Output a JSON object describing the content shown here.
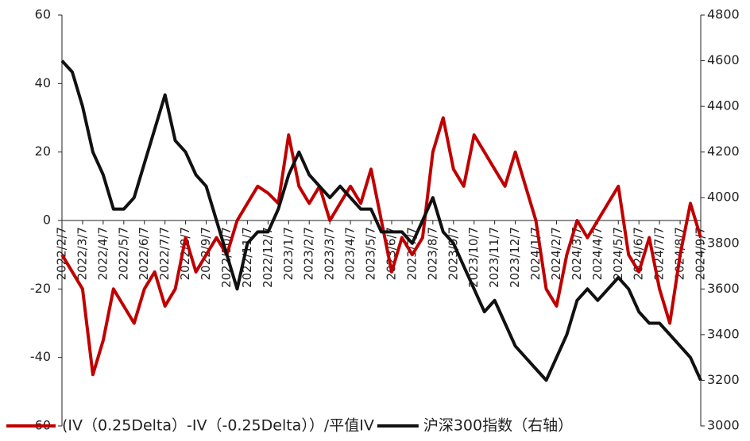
{
  "chart_data": {
    "type": "line",
    "categories": [
      "2022/2/7",
      null,
      "2022/3/7",
      null,
      "2022/4/7",
      null,
      "2022/5/7",
      null,
      "2022/6/7",
      null,
      "2022/7/7",
      null,
      "2022/8/7",
      null,
      "2022/9/7",
      null,
      "2022/10/7",
      null,
      "2022/11/7",
      null,
      "2022/12/7",
      null,
      "2023/1/7",
      null,
      "2023/2/7",
      null,
      "2023/3/7",
      null,
      "2023/4/7",
      null,
      "2023/5/7",
      null,
      "2023/6/7",
      null,
      "2023/7/7",
      null,
      "2023/8/7",
      null,
      "2023/9/7",
      null,
      "2023/10/7",
      null,
      "2023/11/7",
      null,
      "2023/12/7",
      null,
      "2024/1/7",
      null,
      "2024/2/7",
      null,
      "2024/3/7",
      null,
      "2024/4/7",
      null,
      "2024/5/7",
      null,
      "2024/6/7",
      null,
      "2024/7/7",
      null,
      "2024/8/7",
      null,
      "2024/9/7"
    ],
    "series": [
      {
        "name": "(IV（0.25Delta）-IV（-0.25Delta））/平值IV",
        "color": "#c00000",
        "values": [
          -10,
          -15,
          -20,
          -45,
          -35,
          -20,
          -25,
          -30,
          -20,
          -15,
          -25,
          -20,
          -5,
          -15,
          -10,
          -5,
          -10,
          0,
          5,
          10,
          8,
          5,
          25,
          10,
          5,
          10,
          0,
          5,
          10,
          5,
          15,
          0,
          -15,
          -5,
          -10,
          -5,
          20,
          30,
          15,
          10,
          25,
          20,
          15,
          10,
          20,
          10,
          0,
          -20,
          -25,
          -10,
          0,
          -5,
          0,
          5,
          10,
          -10,
          -15,
          -5,
          -20,
          -30,
          -10,
          5,
          -5
        ]
      },
      {
        "name": "沪深300指数（右轴）",
        "color": "#111111",
        "axis": "y2",
        "values": [
          4600,
          4550,
          4400,
          4200,
          4100,
          3950,
          3950,
          4000,
          4150,
          4300,
          4450,
          4250,
          4200,
          4100,
          4050,
          3900,
          3750,
          3600,
          3800,
          3850,
          3850,
          3950,
          4100,
          4200,
          4100,
          4050,
          4000,
          4050,
          4000,
          3950,
          3950,
          3850,
          3850,
          3850,
          3800,
          3900,
          4000,
          3850,
          3800,
          3700,
          3600,
          3500,
          3550,
          3450,
          3350,
          3300,
          3250,
          3200,
          3300,
          3400,
          3550,
          3600,
          3550,
          3600,
          3650,
          3600,
          3500,
          3450,
          3450,
          3400,
          3350,
          3300,
          3200
        ]
      }
    ],
    "ylim": [
      -60,
      60
    ],
    "yticks": [
      60,
      40,
      20,
      0,
      -20,
      -40,
      -60
    ],
    "y2lim": [
      3000,
      4800
    ],
    "y2ticks": [
      4800,
      4600,
      4400,
      4200,
      4000,
      3800,
      3600,
      3400,
      3200,
      3000
    ]
  }
}
